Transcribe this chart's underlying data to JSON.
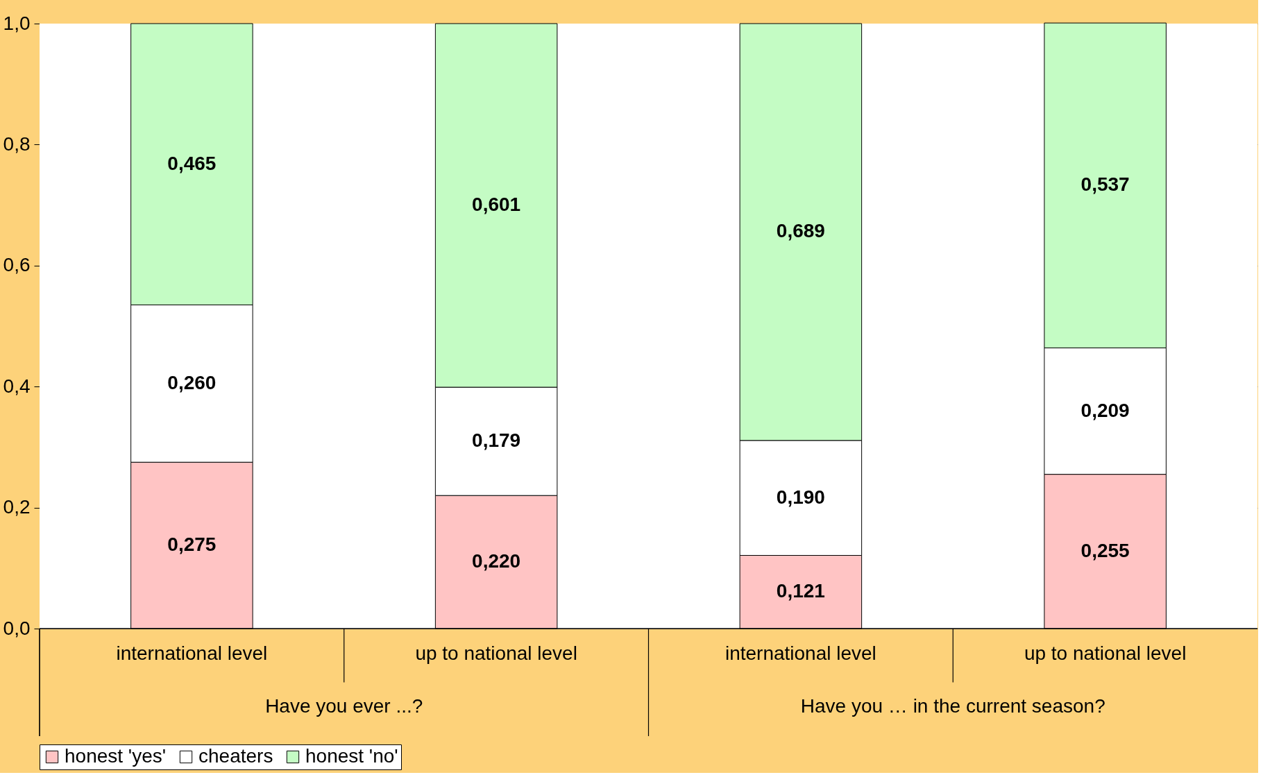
{
  "chart_data": {
    "type": "bar",
    "stacked": true,
    "categories": [
      "international level",
      "up to national level",
      "international level",
      "up to national level"
    ],
    "series": [
      {
        "name": "honest 'yes'",
        "color": "#ffc4c4",
        "values": [
          0.275,
          0.22,
          0.121,
          0.255
        ],
        "value_labels": [
          "0,275",
          "0,220",
          "0,121",
          "0,255"
        ]
      },
      {
        "name": "cheaters",
        "color": "#ffffff",
        "values": [
          0.26,
          0.179,
          0.19,
          0.209
        ],
        "value_labels": [
          "0,260",
          "0,179",
          "0,190",
          "0,209"
        ]
      },
      {
        "name": "honest 'no'",
        "color": "#c4fcc4",
        "values": [
          0.465,
          0.601,
          0.689,
          0.537
        ],
        "value_labels": [
          "0,465",
          "0,601",
          "0,689",
          "0,537"
        ]
      }
    ],
    "annotations": [
      "Have you ever ...?",
      "Have you … in the current season?"
    ],
    "ylim": [
      0,
      1
    ],
    "yticks": [
      {
        "value": 0,
        "label": "0,0"
      },
      {
        "value": 0.2,
        "label": "0,2"
      },
      {
        "value": 0.4,
        "label": "0,4"
      },
      {
        "value": 0.6,
        "label": "0,6"
      },
      {
        "value": 0.8,
        "label": "0,8"
      },
      {
        "value": 1,
        "label": "1,0"
      }
    ],
    "grid": "y",
    "legend": "bottom"
  }
}
